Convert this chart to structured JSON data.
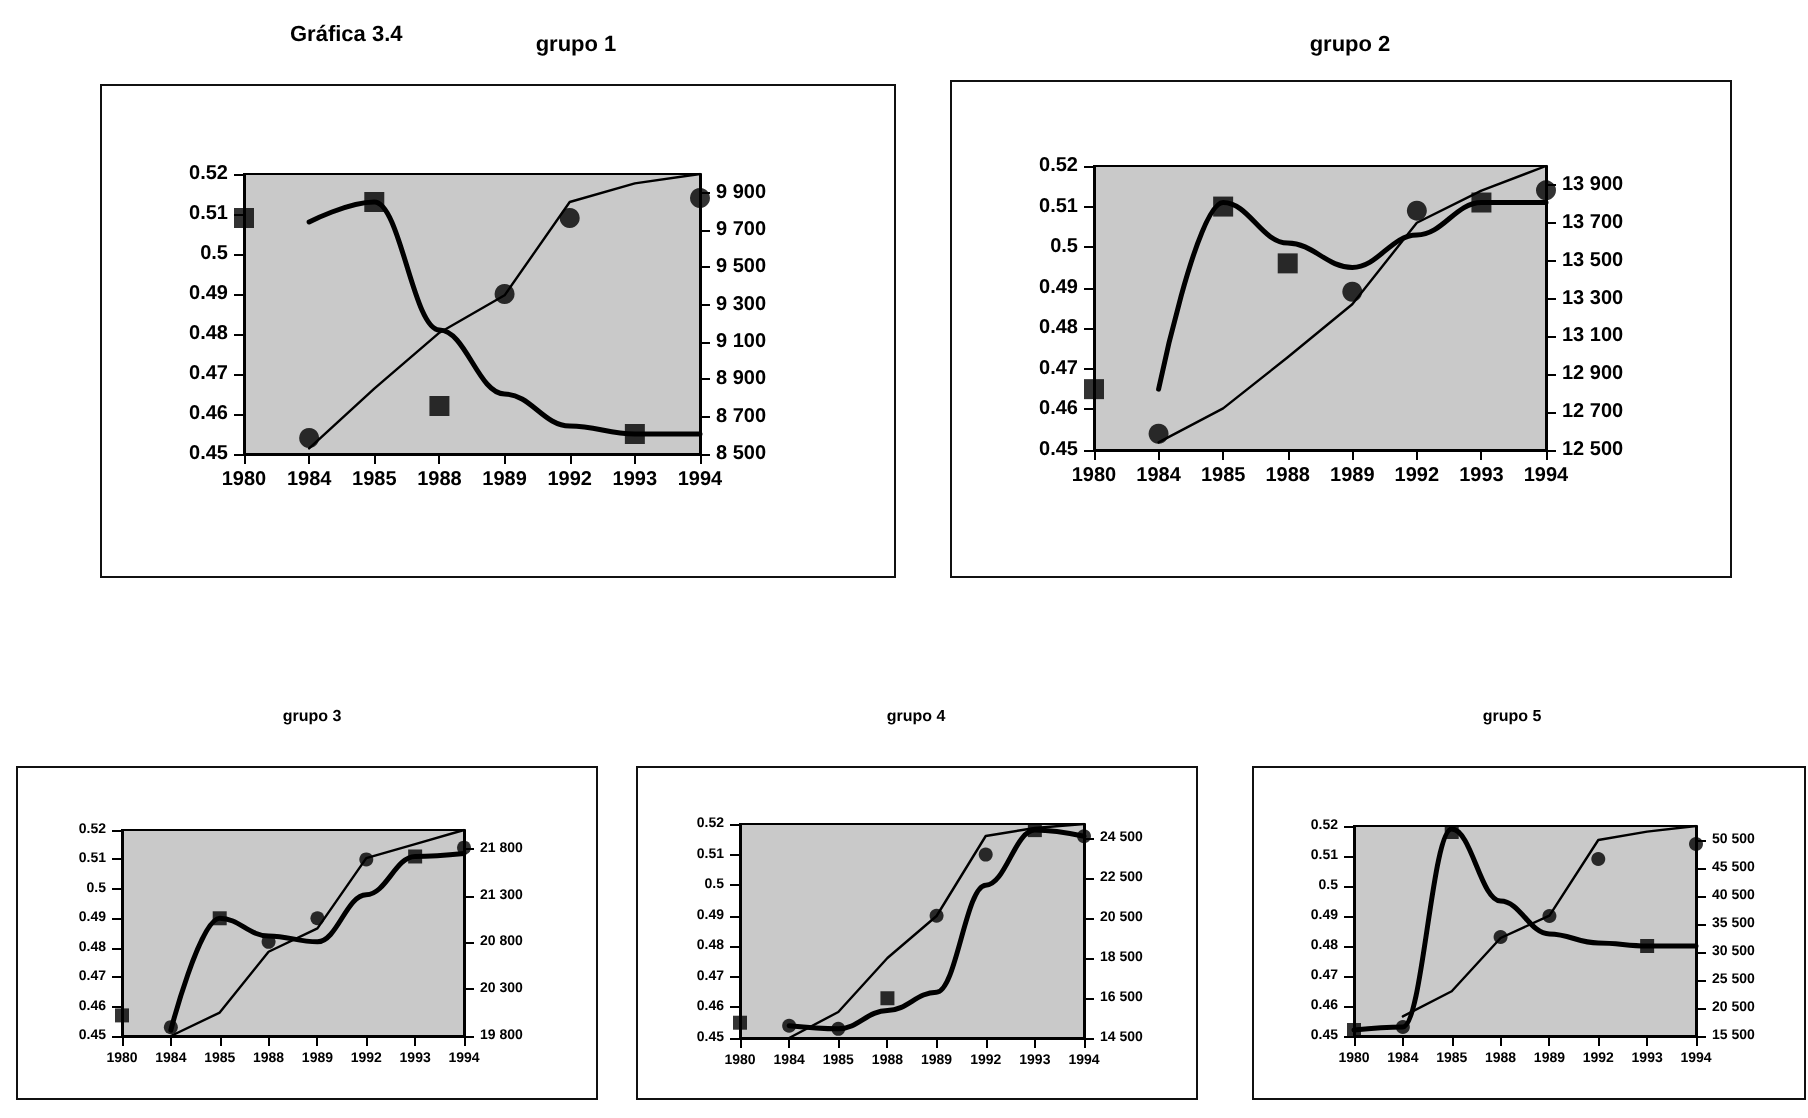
{
  "chart_data": [
    {
      "type": "line",
      "title": "grupo 1",
      "annotations": [
        "Gráfica 3.4"
      ],
      "categories": [
        "1980",
        "1984",
        "1985",
        "1988",
        "1989",
        "1992",
        "1993",
        "1994"
      ],
      "ylim": [
        0.45,
        0.52
      ],
      "yticks": [
        0.45,
        0.46,
        0.47,
        0.48,
        0.49,
        0.5,
        0.51,
        0.52
      ],
      "y2lim": [
        8500,
        10000
      ],
      "y2ticks": [
        {
          "value": 8500,
          "label": "8 500"
        },
        {
          "value": 8700,
          "label": "8 700"
        },
        {
          "value": 8900,
          "label": "8 900"
        },
        {
          "value": 9100,
          "label": "9 100"
        },
        {
          "value": 9300,
          "label": "9 300"
        },
        {
          "value": 9500,
          "label": "9 500"
        },
        {
          "value": 9700,
          "label": "9 700"
        },
        {
          "value": 9900,
          "label": "9 900"
        }
      ],
      "series": [
        {
          "color": "#000000",
          "marker": "none",
          "values": [
            null,
            0.508,
            0.513,
            0.481,
            0.465,
            0.457,
            0.455,
            0.455
          ]
        },
        {
          "axis": "y2",
          "color": "#000000",
          "marker": "none",
          "values": [
            null,
            8530,
            8850,
            9150,
            9350,
            9850,
            9950,
            10000
          ]
        },
        {
          "type": "scatter",
          "color": "#000000",
          "marker": "square",
          "values": [
            0.509,
            null,
            0.513,
            0.462,
            null,
            null,
            0.455,
            null
          ]
        },
        {
          "type": "scatter",
          "color": "#000000",
          "marker": "circle",
          "values": [
            null,
            0.454,
            null,
            null,
            0.49,
            0.509,
            null,
            0.514
          ]
        }
      ]
    },
    {
      "type": "line",
      "title": "grupo 2",
      "categories": [
        "1980",
        "1984",
        "1985",
        "1988",
        "1989",
        "1992",
        "1993",
        "1994"
      ],
      "ylim": [
        0.45,
        0.52
      ],
      "yticks": [
        0.45,
        0.46,
        0.47,
        0.48,
        0.49,
        0.5,
        0.51,
        0.52
      ],
      "y2lim": [
        12500,
        14000
      ],
      "y2ticks": [
        {
          "value": 12500,
          "label": "12 500"
        },
        {
          "value": 12700,
          "label": "12 700"
        },
        {
          "value": 12900,
          "label": "12 900"
        },
        {
          "value": 13100,
          "label": "13 100"
        },
        {
          "value": 13300,
          "label": "13 300"
        },
        {
          "value": 13500,
          "label": "13 500"
        },
        {
          "value": 13700,
          "label": "13 700"
        },
        {
          "value": 13900,
          "label": "13 900"
        }
      ],
      "series": [
        {
          "color": "#000000",
          "marker": "none",
          "values": [
            null,
            0.465,
            0.511,
            0.501,
            0.495,
            0.503,
            0.511,
            0.511
          ]
        },
        {
          "axis": "y2",
          "color": "#000000",
          "marker": "none",
          "values": [
            null,
            12540,
            12720,
            12990,
            13270,
            13700,
            13870,
            14000
          ]
        },
        {
          "type": "scatter",
          "color": "#000000",
          "marker": "square",
          "values": [
            0.465,
            null,
            0.51,
            0.496,
            null,
            null,
            0.511,
            null
          ]
        },
        {
          "type": "scatter",
          "color": "#000000",
          "marker": "circle",
          "values": [
            null,
            0.454,
            null,
            null,
            0.489,
            0.509,
            null,
            0.514
          ]
        }
      ]
    },
    {
      "type": "line",
      "title": "grupo 3",
      "categories": [
        "1980",
        "1984",
        "1985",
        "1988",
        "1989",
        "1992",
        "1993",
        "1994"
      ],
      "ylim": [
        0.45,
        0.52
      ],
      "yticks": [
        0.45,
        0.46,
        0.47,
        0.48,
        0.49,
        0.5,
        0.51,
        0.52
      ],
      "y2lim": [
        19800,
        22000
      ],
      "y2ticks": [
        {
          "value": 19800,
          "label": "19 800"
        },
        {
          "value": 20300,
          "label": "20 300"
        },
        {
          "value": 20800,
          "label": "20 800"
        },
        {
          "value": 21300,
          "label": "21 300"
        },
        {
          "value": 21800,
          "label": "21 800"
        }
      ],
      "series": [
        {
          "color": "#000000",
          "marker": "none",
          "values": [
            null,
            0.452,
            0.49,
            0.484,
            0.482,
            0.498,
            0.511,
            0.512
          ]
        },
        {
          "axis": "y2",
          "color": "#000000",
          "marker": "none",
          "values": [
            null,
            19800,
            20050,
            20700,
            20950,
            21700,
            21850,
            22000
          ]
        },
        {
          "type": "scatter",
          "color": "#000000",
          "marker": "square",
          "values": [
            0.457,
            null,
            0.49,
            null,
            null,
            null,
            0.511,
            null
          ]
        },
        {
          "type": "scatter",
          "color": "#000000",
          "marker": "circle",
          "values": [
            null,
            0.453,
            null,
            0.482,
            0.49,
            0.51,
            null,
            0.514
          ]
        }
      ]
    },
    {
      "type": "line",
      "title": "grupo 4",
      "categories": [
        "1980",
        "1984",
        "1985",
        "1988",
        "1989",
        "1992",
        "1993",
        "1994"
      ],
      "ylim": [
        0.45,
        0.52
      ],
      "yticks": [
        0.45,
        0.46,
        0.47,
        0.48,
        0.49,
        0.5,
        0.51,
        0.52
      ],
      "y2lim": [
        14500,
        25200
      ],
      "y2ticks": [
        {
          "value": 14500,
          "label": "14 500"
        },
        {
          "value": 16500,
          "label": "16 500"
        },
        {
          "value": 18500,
          "label": "18 500"
        },
        {
          "value": 20500,
          "label": "20 500"
        },
        {
          "value": 22500,
          "label": "22 500"
        },
        {
          "value": 24500,
          "label": "24 500"
        }
      ],
      "series": [
        {
          "color": "#000000",
          "marker": "none",
          "values": [
            null,
            0.454,
            0.453,
            0.459,
            0.465,
            0.5,
            0.518,
            0.516
          ]
        },
        {
          "axis": "y2",
          "color": "#000000",
          "marker": "none",
          "values": [
            null,
            14500,
            15800,
            18500,
            20600,
            24600,
            25000,
            25200
          ]
        },
        {
          "type": "scatter",
          "color": "#000000",
          "marker": "square",
          "values": [
            0.455,
            null,
            null,
            0.463,
            null,
            null,
            0.518,
            null
          ]
        },
        {
          "type": "scatter",
          "color": "#000000",
          "marker": "circle",
          "values": [
            null,
            0.454,
            0.453,
            null,
            0.49,
            0.51,
            null,
            0.516
          ]
        }
      ]
    },
    {
      "type": "line",
      "title": "grupo 5",
      "categories": [
        "1980",
        "1984",
        "1985",
        "1988",
        "1989",
        "1992",
        "1993",
        "1994"
      ],
      "ylim": [
        0.45,
        0.52
      ],
      "yticks": [
        0.45,
        0.46,
        0.47,
        0.48,
        0.49,
        0.5,
        0.51,
        0.52
      ],
      "y2lim": [
        15500,
        53000
      ],
      "y2ticks": [
        {
          "value": 15500,
          "label": "15 500"
        },
        {
          "value": 20500,
          "label": "20 500"
        },
        {
          "value": 25500,
          "label": "25 500"
        },
        {
          "value": 30500,
          "label": "30 500"
        },
        {
          "value": 35500,
          "label": "35 500"
        },
        {
          "value": 40500,
          "label": "40 500"
        },
        {
          "value": 45500,
          "label": "45 500"
        },
        {
          "value": 50500,
          "label": "50 500"
        }
      ],
      "series": [
        {
          "color": "#000000",
          "marker": "none",
          "values": [
            0.452,
            0.453,
            0.519,
            0.495,
            0.484,
            0.481,
            0.48,
            0.48
          ]
        },
        {
          "axis": "y2",
          "color": "#000000",
          "marker": "none",
          "values": [
            null,
            19000,
            23500,
            33000,
            37000,
            50500,
            52000,
            53000
          ]
        },
        {
          "type": "scatter",
          "color": "#000000",
          "marker": "square",
          "values": [
            0.452,
            null,
            0.518,
            null,
            null,
            null,
            0.48,
            null
          ]
        },
        {
          "type": "scatter",
          "color": "#000000",
          "marker": "circle",
          "values": [
            null,
            0.453,
            null,
            0.483,
            0.49,
            0.509,
            null,
            0.514
          ]
        }
      ]
    }
  ]
}
